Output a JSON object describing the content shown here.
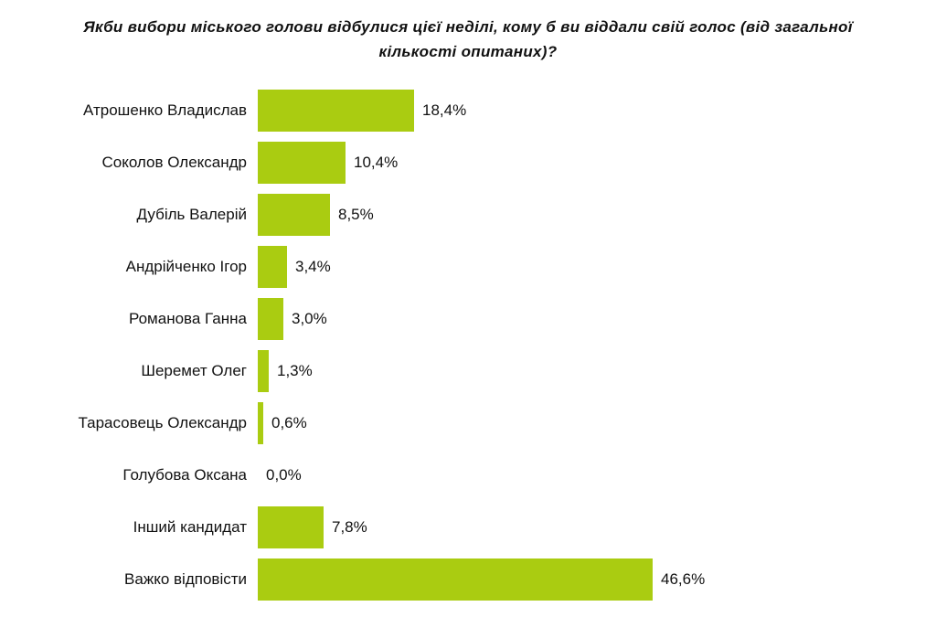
{
  "title": "Якби вибори міського голови відбулися цієї неділі, кому б ви віддали свій голос (від загальної кількості опитаних)?",
  "colors": {
    "bar": "#aacc11",
    "text": "#111111",
    "background": "#ffffff"
  },
  "chart_data": {
    "type": "bar",
    "orientation": "horizontal",
    "title": "Якби вибори міського голови відбулися цієї неділі, кому б ви віддали свій голос (від загальної кількості опитаних)?",
    "categories": [
      "Атрошенко Владислав",
      "Соколов  Олександр",
      "Дубіль Валерій",
      "Андрійченко Ігор",
      "Романова Ганна",
      "Шеремет Олег",
      "Тарасовець Олександр",
      "Голубова Оксана",
      "Інший кандидат",
      "Важко відповісти"
    ],
    "values": [
      18.4,
      10.4,
      8.5,
      3.4,
      3.0,
      1.3,
      0.6,
      0.0,
      7.8,
      46.6
    ],
    "value_labels": [
      "18,4%",
      "10,4%",
      "8,5%",
      "3,4%",
      "3,0%",
      "1,3%",
      "0,6%",
      "0,0%",
      "7,8%",
      "46,6%"
    ],
    "xlabel": "",
    "ylabel": "",
    "xlim": [
      0,
      50
    ],
    "grid": false,
    "legend": false,
    "data_labels": true
  }
}
